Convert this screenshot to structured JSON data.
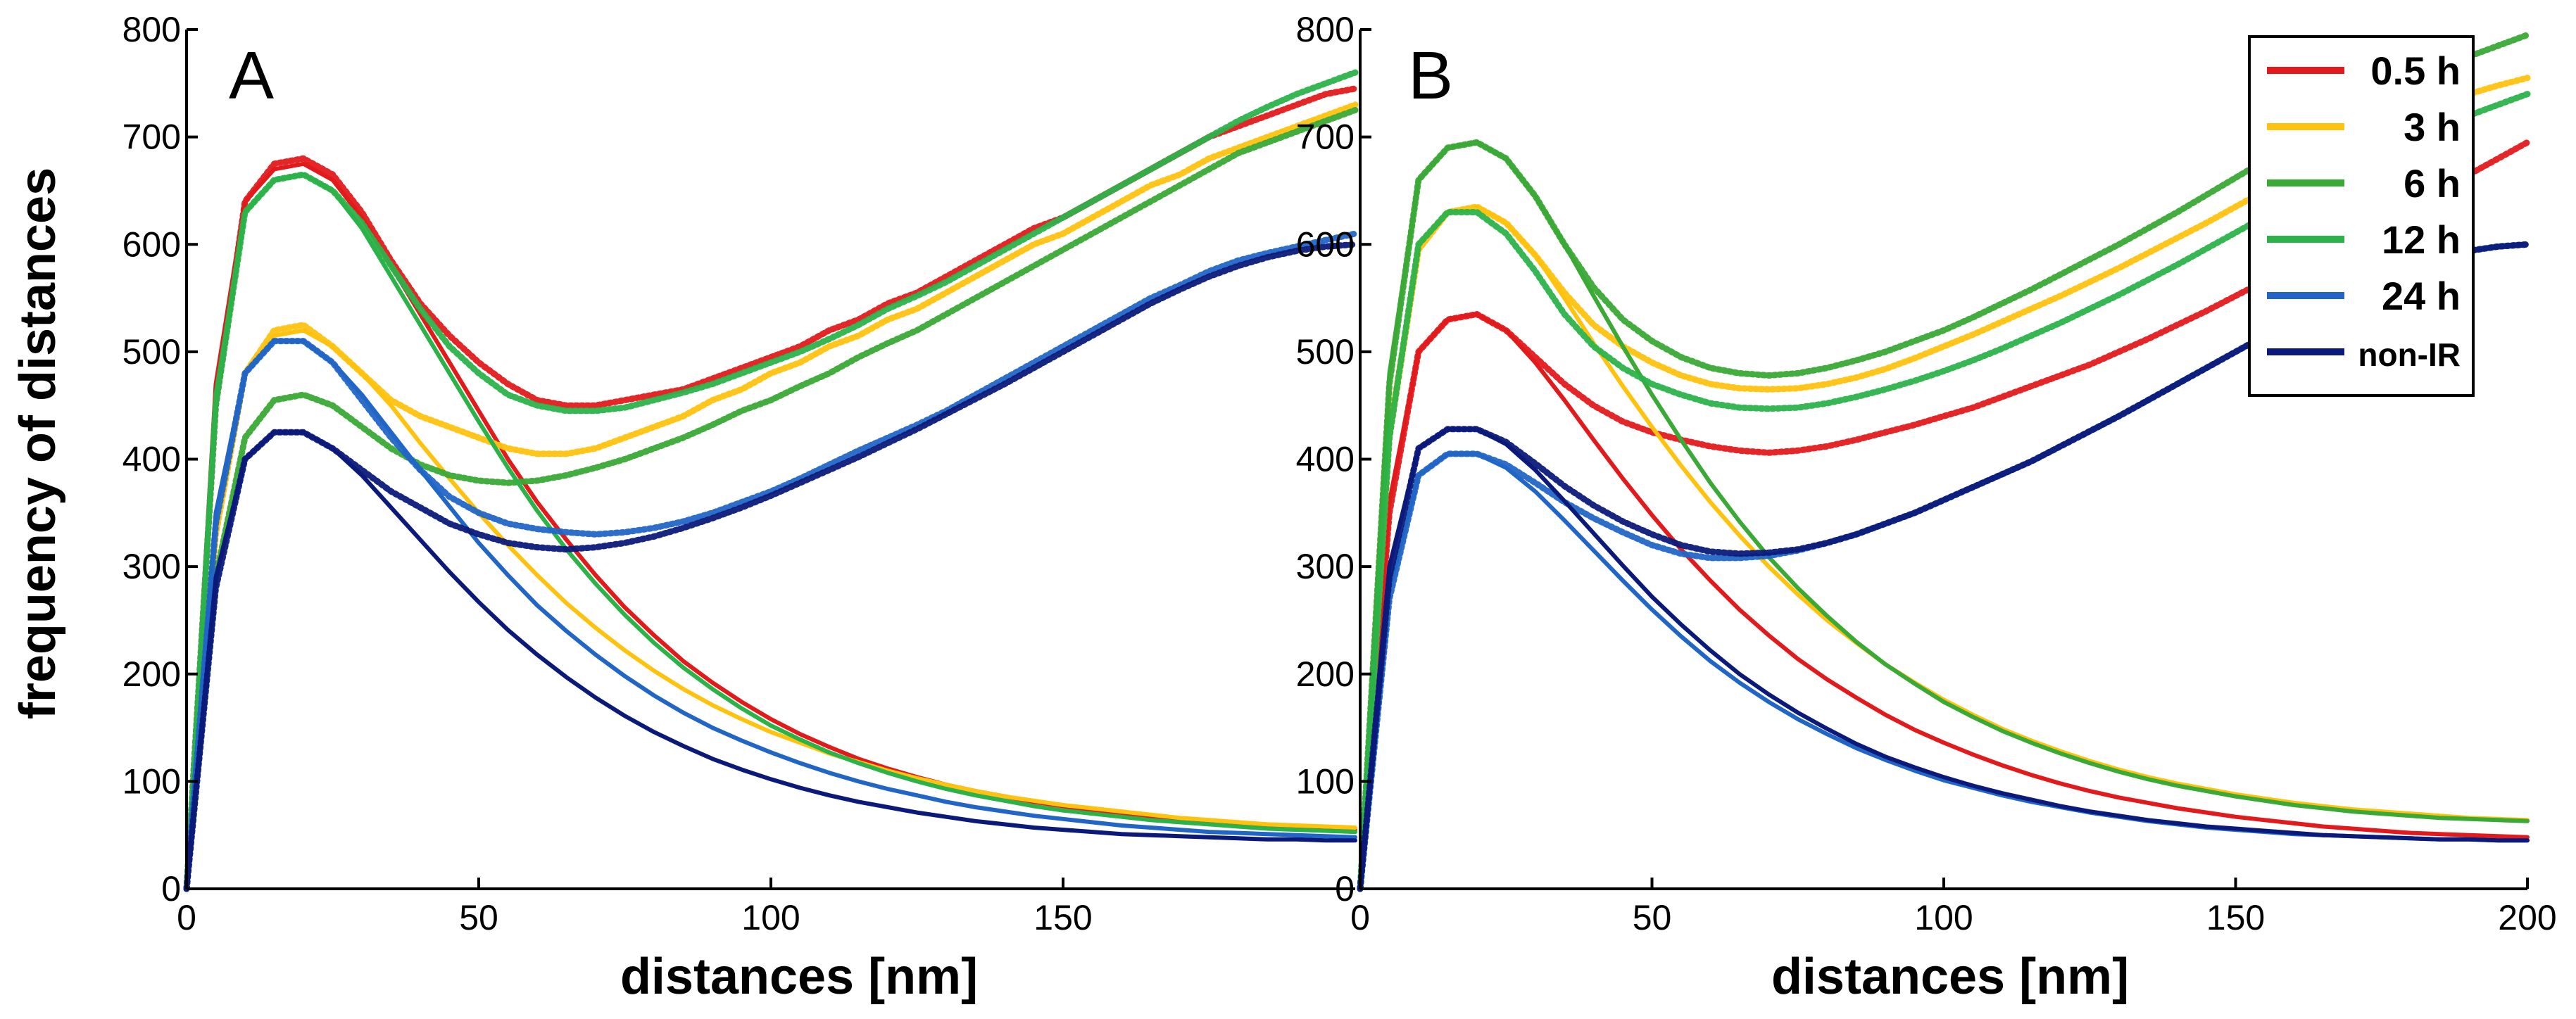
{
  "colors": {
    "0.5 h": "#e31a1c",
    "3 h": "#ffc20e",
    "6 h": "#3aa935",
    "12 h": "#2bb34a",
    "24 h": "#2166c6",
    "non-IR": "#0b1a7a"
  },
  "chart_data": [
    {
      "type": "line",
      "panel_label": "A",
      "xlabel": "distances [nm]",
      "ylabel": "frequency of distances",
      "xlim": [
        0,
        200
      ],
      "ylim": [
        0,
        800
      ],
      "xticks": [
        0,
        50,
        100,
        150
      ],
      "yticks": [
        0,
        100,
        200,
        300,
        400,
        500,
        600,
        700,
        800
      ],
      "grid": false,
      "legend": "none",
      "x": [
        0,
        5,
        10,
        15,
        20,
        25,
        30,
        35,
        40,
        45,
        50,
        55,
        60,
        65,
        70,
        75,
        80,
        85,
        90,
        95,
        100,
        105,
        110,
        115,
        120,
        125,
        130,
        135,
        140,
        145,
        150,
        155,
        160,
        165,
        170,
        175,
        180,
        185,
        190,
        195,
        200
      ],
      "series": [
        {
          "name": "0.5 h",
          "style": "measured",
          "values": [
            0,
            450,
            640,
            675,
            680,
            665,
            630,
            585,
            545,
            515,
            490,
            470,
            455,
            450,
            450,
            455,
            460,
            465,
            475,
            485,
            495,
            505,
            520,
            530,
            545,
            555,
            570,
            585,
            600,
            615,
            625,
            640,
            655,
            670,
            685,
            700,
            710,
            720,
            730,
            740,
            745
          ]
        },
        {
          "name": "0.5 h",
          "style": "fit",
          "values": [
            0,
            470,
            640,
            670,
            675,
            660,
            625,
            580,
            535,
            490,
            445,
            400,
            360,
            325,
            292,
            262,
            236,
            212,
            192,
            174,
            158,
            144,
            132,
            121,
            112,
            104,
            97,
            91,
            86,
            81,
            77,
            73,
            70,
            67,
            64,
            62,
            60,
            58,
            57,
            56,
            55
          ]
        },
        {
          "name": "3 h",
          "style": "measured",
          "values": [
            0,
            330,
            480,
            520,
            525,
            505,
            480,
            455,
            440,
            430,
            420,
            410,
            405,
            405,
            410,
            420,
            430,
            440,
            455,
            465,
            480,
            490,
            505,
            515,
            530,
            540,
            555,
            570,
            585,
            600,
            610,
            625,
            640,
            655,
            665,
            680,
            690,
            700,
            710,
            720,
            730
          ]
        },
        {
          "name": "3 h",
          "style": "fit",
          "values": [
            0,
            340,
            480,
            515,
            520,
            505,
            480,
            450,
            415,
            382,
            350,
            320,
            292,
            266,
            243,
            222,
            203,
            186,
            171,
            158,
            146,
            136,
            126,
            118,
            110,
            103,
            97,
            91,
            86,
            82,
            78,
            75,
            72,
            69,
            66,
            64,
            62,
            60,
            59,
            58,
            57
          ]
        },
        {
          "name": "6 h",
          "style": "measured",
          "values": [
            0,
            290,
            420,
            455,
            460,
            450,
            430,
            410,
            395,
            385,
            380,
            378,
            380,
            385,
            392,
            400,
            410,
            420,
            432,
            445,
            455,
            468,
            480,
            495,
            508,
            520,
            535,
            550,
            565,
            580,
            595,
            610,
            625,
            640,
            655,
            670,
            685,
            695,
            705,
            715,
            725
          ]
        },
        {
          "name": "12 h",
          "style": "measured",
          "values": [
            0,
            450,
            630,
            660,
            665,
            650,
            620,
            580,
            540,
            505,
            480,
            460,
            450,
            445,
            445,
            448,
            455,
            462,
            470,
            480,
            490,
            500,
            512,
            525,
            540,
            552,
            565,
            580,
            595,
            610,
            625,
            640,
            655,
            670,
            685,
            700,
            715,
            728,
            740,
            750,
            760
          ]
        },
        {
          "name": "12 h",
          "style": "fit",
          "values": [
            0,
            460,
            630,
            660,
            665,
            650,
            615,
            570,
            525,
            480,
            435,
            392,
            352,
            316,
            284,
            255,
            229,
            206,
            186,
            168,
            152,
            139,
            127,
            117,
            108,
            100,
            93,
            87,
            82,
            77,
            73,
            70,
            67,
            64,
            62,
            60,
            58,
            56,
            55,
            54,
            53
          ]
        },
        {
          "name": "24 h",
          "style": "measured",
          "values": [
            0,
            340,
            480,
            510,
            510,
            490,
            455,
            420,
            390,
            365,
            350,
            340,
            335,
            332,
            330,
            332,
            336,
            342,
            350,
            360,
            370,
            382,
            395,
            408,
            420,
            432,
            445,
            460,
            475,
            490,
            505,
            520,
            535,
            550,
            562,
            575,
            585,
            592,
            598,
            604,
            610
          ]
        },
        {
          "name": "24 h",
          "style": "fit",
          "values": [
            0,
            350,
            480,
            510,
            510,
            490,
            460,
            425,
            390,
            356,
            322,
            292,
            264,
            240,
            218,
            198,
            180,
            164,
            150,
            138,
            127,
            117,
            108,
            100,
            93,
            87,
            81,
            76,
            72,
            68,
            65,
            62,
            59,
            57,
            55,
            53,
            52,
            51,
            50,
            49,
            48
          ]
        },
        {
          "name": "non-IR",
          "style": "measured",
          "values": [
            0,
            280,
            400,
            425,
            425,
            410,
            390,
            370,
            355,
            340,
            330,
            322,
            318,
            316,
            318,
            322,
            328,
            336,
            345,
            355,
            366,
            378,
            390,
            402,
            415,
            428,
            442,
            456,
            470,
            485,
            500,
            515,
            530,
            545,
            558,
            570,
            580,
            588,
            594,
            598,
            600
          ]
        },
        {
          "name": "non-IR",
          "style": "fit",
          "values": [
            0,
            290,
            400,
            425,
            425,
            410,
            385,
            355,
            325,
            295,
            267,
            241,
            218,
            197,
            178,
            161,
            146,
            133,
            121,
            111,
            102,
            94,
            87,
            81,
            76,
            71,
            67,
            63,
            60,
            57,
            55,
            53,
            51,
            50,
            49,
            48,
            47,
            46,
            46,
            45,
            45
          ]
        }
      ]
    },
    {
      "type": "line",
      "panel_label": "B",
      "xlabel": "distances [nm]",
      "ylabel": "",
      "xlim": [
        0,
        200
      ],
      "ylim": [
        0,
        800
      ],
      "xticks": [
        0,
        50,
        100,
        150,
        200
      ],
      "yticks": [
        0,
        100,
        200,
        300,
        400,
        500,
        600,
        700,
        800
      ],
      "grid": false,
      "legend": "top-right",
      "legend_entries": [
        "0.5 h",
        "3 h",
        "6 h",
        "12 h",
        "24 h",
        "non-IR"
      ],
      "x": [
        0,
        5,
        10,
        15,
        20,
        25,
        30,
        35,
        40,
        45,
        50,
        55,
        60,
        65,
        70,
        75,
        80,
        85,
        90,
        95,
        100,
        105,
        110,
        115,
        120,
        125,
        130,
        135,
        140,
        145,
        150,
        155,
        160,
        165,
        170,
        175,
        180,
        185,
        190,
        195,
        200
      ],
      "series": [
        {
          "name": "0.5 h",
          "style": "measured",
          "values": [
            0,
            350,
            500,
            530,
            535,
            520,
            495,
            470,
            450,
            435,
            425,
            418,
            412,
            408,
            406,
            408,
            412,
            418,
            425,
            432,
            440,
            448,
            458,
            468,
            478,
            488,
            500,
            512,
            525,
            538,
            552,
            566,
            580,
            594,
            608,
            622,
            636,
            650,
            665,
            680,
            695
          ]
        },
        {
          "name": "0.5 h",
          "style": "fit",
          "values": [
            0,
            360,
            500,
            530,
            535,
            520,
            490,
            455,
            418,
            382,
            348,
            316,
            287,
            260,
            236,
            214,
            195,
            178,
            162,
            148,
            136,
            125,
            115,
            106,
            98,
            91,
            85,
            80,
            75,
            71,
            67,
            64,
            61,
            58,
            56,
            54,
            52,
            51,
            50,
            49,
            48
          ]
        },
        {
          "name": "3 h",
          "style": "measured",
          "values": [
            0,
            420,
            595,
            630,
            635,
            620,
            590,
            555,
            525,
            505,
            490,
            478,
            470,
            466,
            465,
            466,
            470,
            476,
            484,
            494,
            505,
            516,
            528,
            540,
            552,
            565,
            578,
            592,
            606,
            620,
            635,
            650,
            665,
            680,
            695,
            710,
            720,
            730,
            740,
            748,
            755
          ]
        },
        {
          "name": "3 h",
          "style": "fit",
          "values": [
            0,
            430,
            600,
            630,
            635,
            620,
            590,
            550,
            508,
            468,
            430,
            394,
            360,
            329,
            300,
            274,
            250,
            229,
            209,
            192,
            176,
            162,
            149,
            138,
            128,
            119,
            111,
            104,
            98,
            93,
            88,
            84,
            80,
            77,
            74,
            72,
            70,
            68,
            66,
            65,
            64
          ]
        },
        {
          "name": "6 h",
          "style": "measured",
          "values": [
            0,
            470,
            660,
            690,
            695,
            680,
            645,
            600,
            560,
            530,
            510,
            495,
            485,
            480,
            478,
            480,
            485,
            492,
            500,
            510,
            520,
            532,
            545,
            558,
            572,
            586,
            600,
            615,
            630,
            646,
            662,
            678,
            694,
            710,
            725,
            740,
            752,
            764,
            775,
            785,
            795
          ]
        },
        {
          "name": "6 h",
          "style": "fit",
          "values": [
            0,
            480,
            660,
            690,
            695,
            680,
            645,
            600,
            552,
            505,
            460,
            418,
            378,
            342,
            309,
            280,
            254,
            230,
            209,
            191,
            174,
            160,
            147,
            136,
            126,
            117,
            109,
            102,
            96,
            91,
            86,
            82,
            78,
            75,
            72,
            70,
            68,
            66,
            65,
            64,
            63
          ]
        },
        {
          "name": "12 h",
          "style": "measured",
          "values": [
            0,
            420,
            600,
            630,
            630,
            610,
            575,
            535,
            505,
            485,
            470,
            460,
            452,
            448,
            447,
            448,
            452,
            458,
            465,
            473,
            482,
            492,
            503,
            515,
            527,
            540,
            553,
            567,
            581,
            596,
            611,
            626,
            641,
            656,
            670,
            684,
            698,
            710,
            720,
            730,
            740
          ]
        },
        {
          "name": "24 h",
          "style": "measured",
          "values": [
            0,
            270,
            385,
            405,
            405,
            395,
            378,
            360,
            345,
            332,
            320,
            312,
            308,
            308,
            310,
            315,
            322,
            330,
            340,
            350,
            362,
            374,
            386,
            398,
            412,
            426,
            440,
            455,
            470,
            485,
            500,
            515,
            530,
            545,
            558,
            570,
            580,
            588,
            594,
            598,
            600
          ]
        },
        {
          "name": "24 h",
          "style": "fit",
          "values": [
            0,
            280,
            385,
            405,
            405,
            392,
            370,
            343,
            315,
            287,
            260,
            235,
            212,
            192,
            174,
            158,
            144,
            131,
            120,
            110,
            101,
            94,
            87,
            81,
            76,
            71,
            67,
            63,
            60,
            57,
            55,
            53,
            51,
            50,
            49,
            48,
            47,
            46,
            46,
            45,
            45
          ]
        },
        {
          "name": "non-IR",
          "style": "measured",
          "values": [
            0,
            290,
            410,
            428,
            428,
            416,
            396,
            375,
            357,
            342,
            330,
            320,
            314,
            312,
            313,
            316,
            322,
            330,
            340,
            350,
            362,
            374,
            386,
            398,
            412,
            426,
            440,
            455,
            470,
            485,
            500,
            515,
            530,
            545,
            558,
            570,
            580,
            588,
            594,
            598,
            600
          ]
        },
        {
          "name": "non-IR",
          "style": "fit",
          "values": [
            0,
            300,
            410,
            428,
            428,
            414,
            390,
            361,
            331,
            301,
            272,
            246,
            222,
            200,
            181,
            164,
            149,
            135,
            123,
            113,
            104,
            96,
            89,
            83,
            77,
            72,
            68,
            64,
            61,
            58,
            56,
            54,
            52,
            50,
            49,
            48,
            47,
            46,
            46,
            45,
            45
          ]
        }
      ]
    }
  ]
}
